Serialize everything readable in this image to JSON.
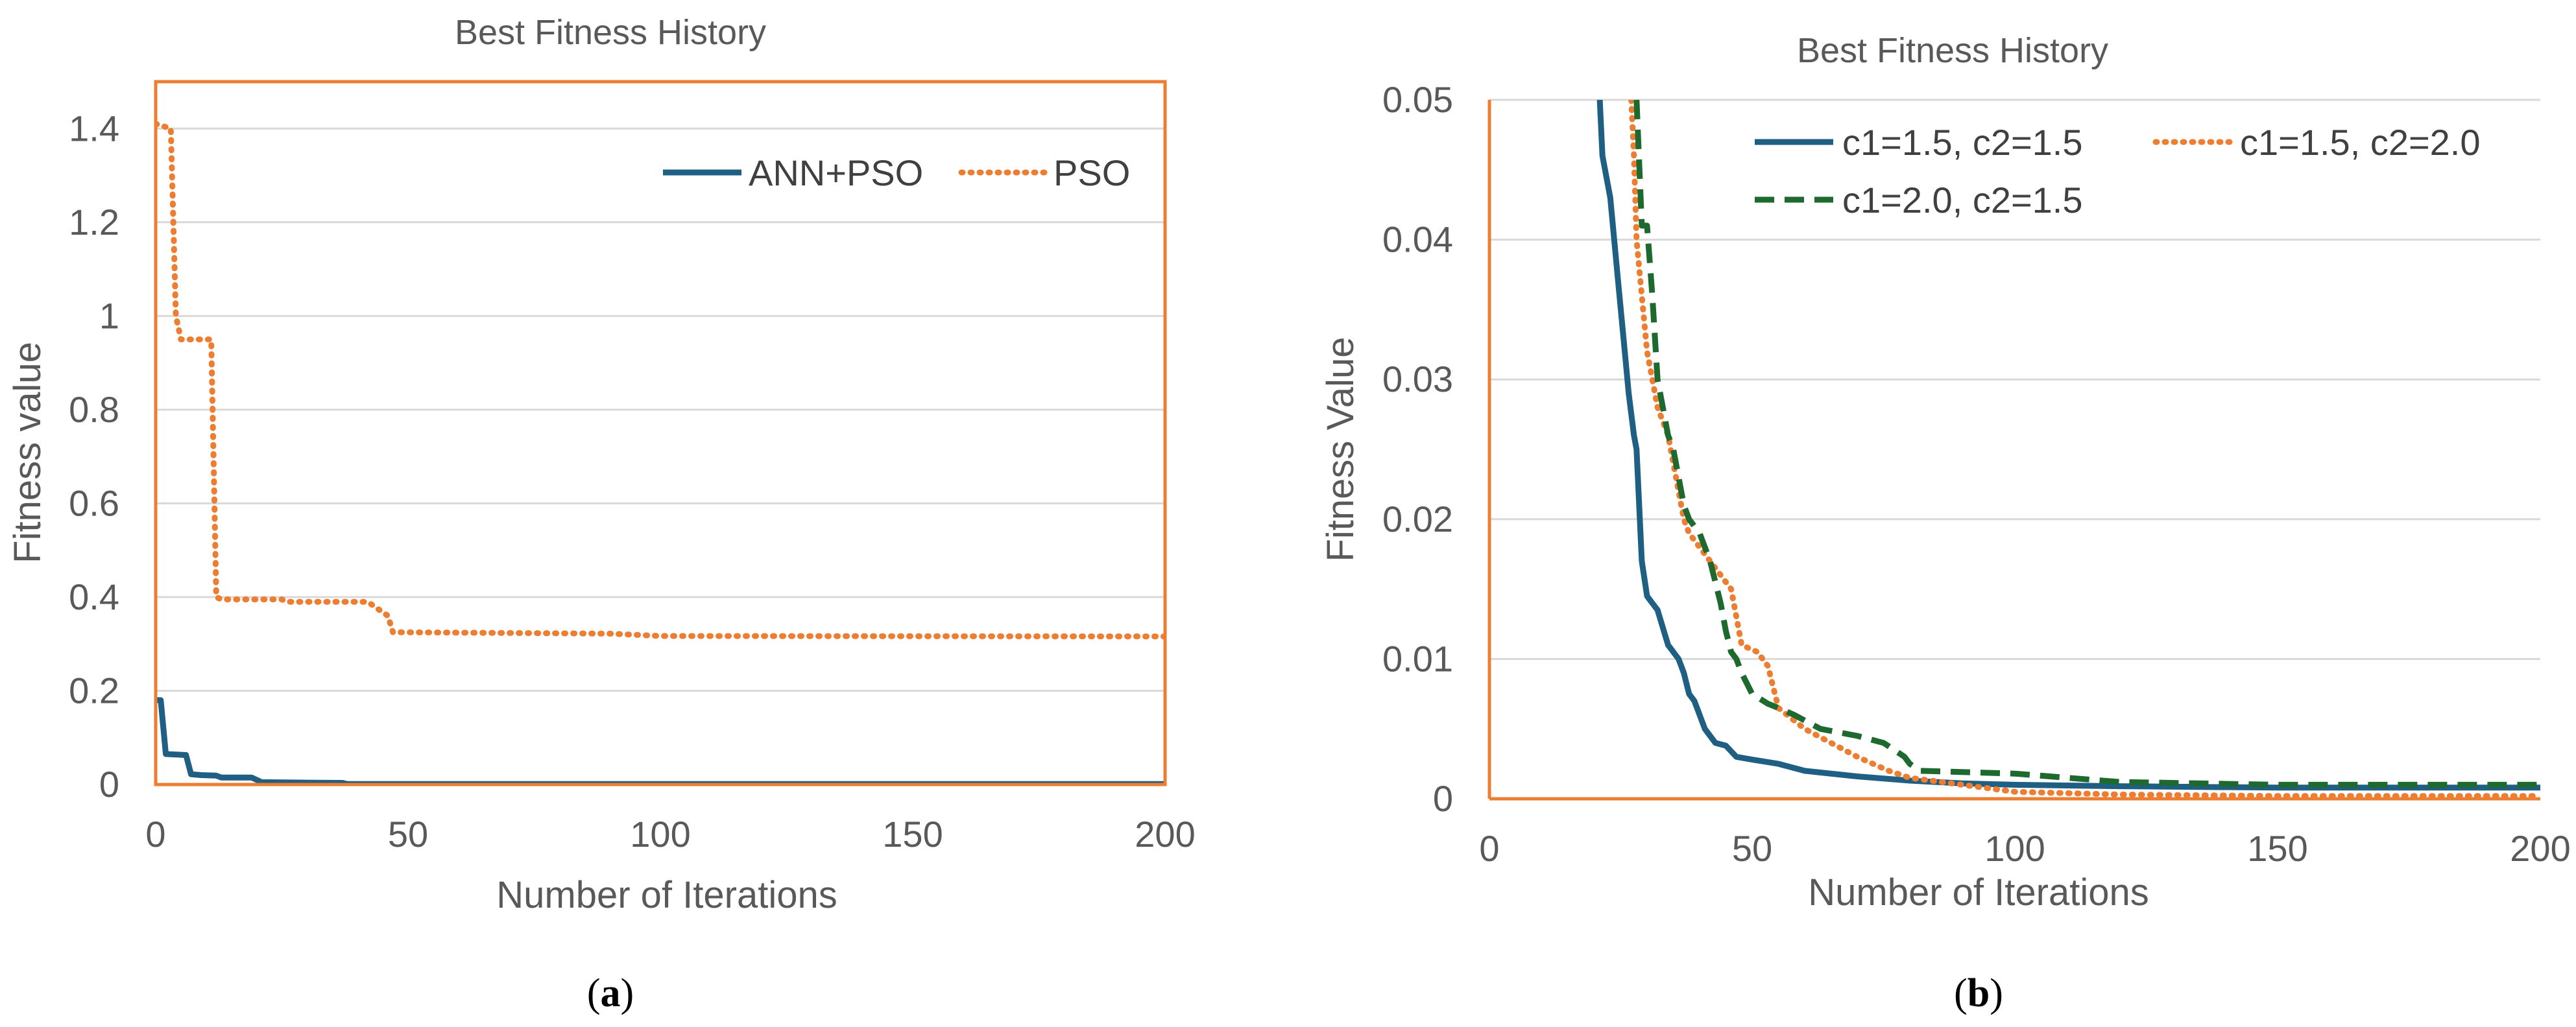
{
  "colors": {
    "blue": "#1f5f83",
    "orange": "#ed7d31",
    "green": "#1e6a2e"
  },
  "chart_data": [
    {
      "type": "line",
      "caption": "a",
      "title": "Best Fitness History",
      "xlabel": "Number of Iterations",
      "ylabel": "Fitness value",
      "xlim": [
        0,
        200
      ],
      "ylim": [
        0,
        1.5
      ],
      "xticks": [
        "0",
        "50",
        "100",
        "150",
        "200"
      ],
      "yticks": [
        "0",
        "0.2",
        "0.4",
        "0.6",
        "0.8",
        "1",
        "1.2",
        "1.4"
      ],
      "legend_position": "top-right",
      "series": [
        {
          "name": "ANN+PSO",
          "style": "solid",
          "color": "#1f5f83",
          "points": [
            [
              0,
              0.18
            ],
            [
              1,
              0.18
            ],
            [
              2,
              0.065
            ],
            [
              6,
              0.063
            ],
            [
              7,
              0.022
            ],
            [
              9,
              0.02
            ],
            [
              12,
              0.019
            ],
            [
              13,
              0.015
            ],
            [
              19,
              0.015
            ],
            [
              21,
              0.005
            ],
            [
              30,
              0.004
            ],
            [
              37,
              0.0035
            ],
            [
              38,
              0.001
            ],
            [
              200,
              0.001
            ]
          ]
        },
        {
          "name": "PSO",
          "style": "dotted",
          "color": "#ed7d31",
          "points": [
            [
              0,
              1.41
            ],
            [
              3,
              1.4
            ],
            [
              4,
              1.0
            ],
            [
              5,
              0.95
            ],
            [
              11,
              0.95
            ],
            [
              12,
              0.4
            ],
            [
              13,
              0.395
            ],
            [
              25,
              0.395
            ],
            [
              26,
              0.39
            ],
            [
              42,
              0.39
            ],
            [
              46,
              0.36
            ],
            [
              47,
              0.325
            ],
            [
              90,
              0.322
            ],
            [
              100,
              0.317
            ],
            [
              200,
              0.316
            ]
          ]
        }
      ]
    },
    {
      "type": "line",
      "caption": "b",
      "title": "Best Fitness History",
      "xlabel": "Number of Iterations",
      "ylabel": "Fitness Value",
      "xlim": [
        0,
        200
      ],
      "ylim": [
        0,
        0.05
      ],
      "xticks": [
        "0",
        "50",
        "100",
        "150",
        "200"
      ],
      "yticks": [
        "0",
        "0.01",
        "0.02",
        "0.03",
        "0.04",
        "0.05"
      ],
      "legend_position": "top-right",
      "series": [
        {
          "name": "c1=1.5, c2=1.5",
          "style": "solid",
          "color": "#1f5f83",
          "points": [
            [
              21,
              0.05
            ],
            [
              21.5,
              0.046
            ],
            [
              23,
              0.043
            ],
            [
              24.5,
              0.037
            ],
            [
              25.5,
              0.033
            ],
            [
              26.5,
              0.029
            ],
            [
              27.5,
              0.026
            ],
            [
              28,
              0.025
            ],
            [
              29,
              0.017
            ],
            [
              30,
              0.0145
            ],
            [
              31,
              0.014
            ],
            [
              32,
              0.0135
            ],
            [
              34,
              0.011
            ],
            [
              35,
              0.0105
            ],
            [
              36,
              0.01
            ],
            [
              37,
              0.009
            ],
            [
              38,
              0.0075
            ],
            [
              39,
              0.007
            ],
            [
              40,
              0.006
            ],
            [
              41,
              0.005
            ],
            [
              42,
              0.0045
            ],
            [
              43,
              0.004
            ],
            [
              45,
              0.0038
            ],
            [
              47,
              0.003
            ],
            [
              50,
              0.0028
            ],
            [
              55,
              0.0025
            ],
            [
              60,
              0.002
            ],
            [
              70,
              0.0016
            ],
            [
              80,
              0.0013
            ],
            [
              90,
              0.0011
            ],
            [
              100,
              0.001
            ],
            [
              120,
              0.0009
            ],
            [
              150,
              0.0008
            ],
            [
              200,
              0.0008
            ]
          ]
        },
        {
          "name": "c1=1.5, c2=2.0",
          "style": "dotted",
          "color": "#ed7d31",
          "points": [
            [
              27,
              0.05
            ],
            [
              27.5,
              0.046
            ],
            [
              28,
              0.04
            ],
            [
              28.5,
              0.038
            ],
            [
              30,
              0.032
            ],
            [
              31,
              0.03
            ],
            [
              32,
              0.028
            ],
            [
              34,
              0.026
            ],
            [
              35,
              0.024
            ],
            [
              36,
              0.022
            ],
            [
              37,
              0.02
            ],
            [
              38,
              0.019
            ],
            [
              40,
              0.018
            ],
            [
              42,
              0.017
            ],
            [
              44,
              0.016
            ],
            [
              46,
              0.015
            ],
            [
              47,
              0.013
            ],
            [
              48,
              0.011
            ],
            [
              51,
              0.0105
            ],
            [
              52,
              0.01
            ],
            [
              53,
              0.0095
            ],
            [
              54,
              0.008
            ],
            [
              55,
              0.0065
            ],
            [
              60,
              0.005
            ],
            [
              66,
              0.0038
            ],
            [
              70,
              0.003
            ],
            [
              76,
              0.002
            ],
            [
              80,
              0.0015
            ],
            [
              90,
              0.001
            ],
            [
              100,
              0.0005
            ],
            [
              120,
              0.0003
            ],
            [
              150,
              0.0002
            ],
            [
              200,
              0.0002
            ]
          ]
        },
        {
          "name": "c1=2.0, c2=1.5",
          "style": "dashed",
          "color": "#1e6a2e",
          "points": [
            [
              28,
              0.05
            ],
            [
              29,
              0.041
            ],
            [
              30,
              0.041
            ],
            [
              31,
              0.036
            ],
            [
              32,
              0.03
            ],
            [
              33,
              0.028
            ],
            [
              34,
              0.026
            ],
            [
              35,
              0.025
            ],
            [
              36,
              0.023
            ],
            [
              37,
              0.021
            ],
            [
              38,
              0.02
            ],
            [
              40,
              0.019
            ],
            [
              42,
              0.017
            ],
            [
              44,
              0.014
            ],
            [
              45,
              0.012
            ],
            [
              46,
              0.0105
            ],
            [
              47,
              0.01
            ],
            [
              48,
              0.009
            ],
            [
              50,
              0.0075
            ],
            [
              53,
              0.0068
            ],
            [
              55,
              0.0065
            ],
            [
              58,
              0.006
            ],
            [
              63,
              0.005
            ],
            [
              70,
              0.0045
            ],
            [
              75,
              0.004
            ],
            [
              77,
              0.0035
            ],
            [
              79,
              0.003
            ],
            [
              80,
              0.0025
            ],
            [
              82,
              0.002
            ],
            [
              100,
              0.0018
            ],
            [
              120,
              0.0012
            ],
            [
              150,
              0.001
            ],
            [
              200,
              0.001
            ]
          ]
        }
      ]
    }
  ]
}
